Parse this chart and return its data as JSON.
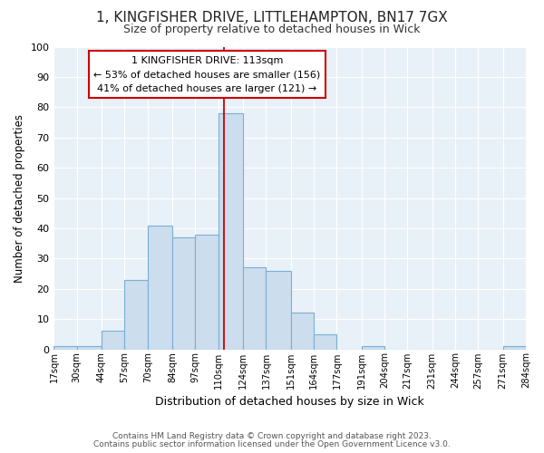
{
  "title": "1, KINGFISHER DRIVE, LITTLEHAMPTON, BN17 7GX",
  "subtitle": "Size of property relative to detached houses in Wick",
  "xlabel": "Distribution of detached houses by size in Wick",
  "ylabel": "Number of detached properties",
  "bin_edges": [
    17,
    30,
    44,
    57,
    70,
    84,
    97,
    110,
    124,
    137,
    151,
    164,
    177,
    191,
    204,
    217,
    231,
    244,
    257,
    271,
    284
  ],
  "bar_heights": [
    1,
    1,
    6,
    23,
    41,
    37,
    38,
    78,
    27,
    26,
    12,
    5,
    0,
    1,
    0,
    0,
    0,
    0,
    0,
    1
  ],
  "bar_color": "#ccdded",
  "bar_edge_color": "#7aafd4",
  "marker_value": 113,
  "marker_color": "#cc0000",
  "ylim": [
    0,
    100
  ],
  "yticks": [
    0,
    10,
    20,
    30,
    40,
    50,
    60,
    70,
    80,
    90,
    100
  ],
  "bg_color": "#e8f0f8",
  "grid_color": "#ffffff",
  "annotation_title": "1 KINGFISHER DRIVE: 113sqm",
  "annotation_line1": "← 53% of detached houses are smaller (156)",
  "annotation_line2": "41% of detached houses are larger (121) →",
  "annotation_box_color": "#cc0000",
  "footnote1": "Contains HM Land Registry data © Crown copyright and database right 2023.",
  "footnote2": "Contains public sector information licensed under the Open Government Licence v3.0."
}
